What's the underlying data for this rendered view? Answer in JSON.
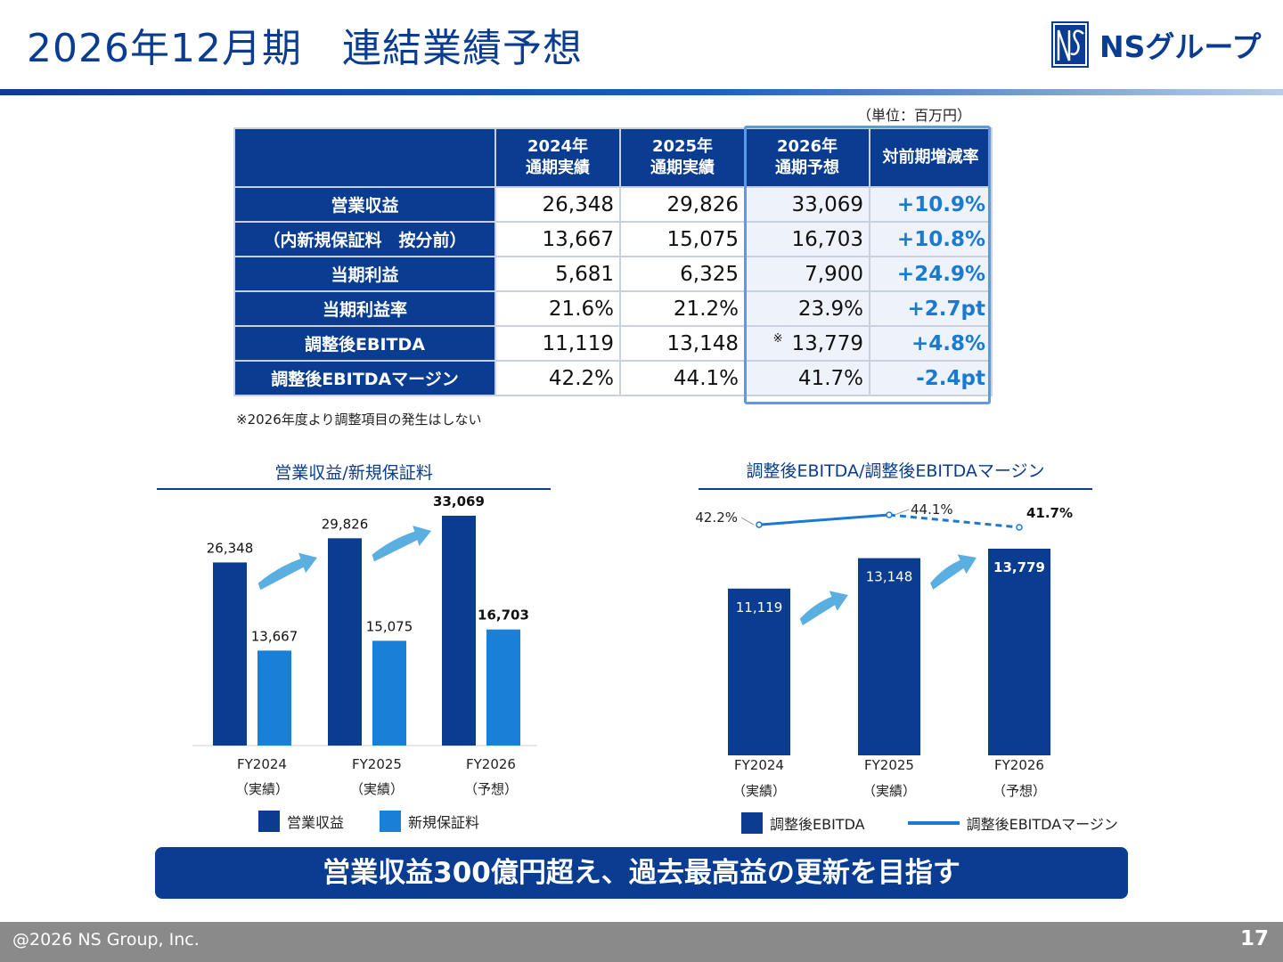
{
  "header": {
    "title": "2026年12月期　連結業績予想",
    "logo_text": "NSグループ",
    "colors": {
      "primary": "#0a3d91",
      "accent": "#1a79d0",
      "light_bar": "#1a7fd6",
      "arrow": "#5aaee0"
    }
  },
  "table": {
    "unit": "（単位：百万円）",
    "columns": [
      {
        "line1": "2024年",
        "line2": "通期実績"
      },
      {
        "line1": "2025年",
        "line2": "通期実績"
      },
      {
        "line1": "2026年",
        "line2": "通期予想"
      },
      {
        "line1": "対前期増減率",
        "line2": ""
      }
    ],
    "rows": [
      {
        "label": "営業収益",
        "v2024": "26,348",
        "v2025": "29,826",
        "v2026": "33,069",
        "change": "+10.9%",
        "mark": ""
      },
      {
        "label": "（内新規保証料　按分前）",
        "v2024": "13,667",
        "v2025": "15,075",
        "v2026": "16,703",
        "change": "+10.8%",
        "mark": ""
      },
      {
        "label": "当期利益",
        "v2024": "5,681",
        "v2025": "6,325",
        "v2026": "7,900",
        "change": "+24.9%",
        "mark": ""
      },
      {
        "label": "当期利益率",
        "v2024": "21.6%",
        "v2025": "21.2%",
        "v2026": "23.9%",
        "change": "+2.7pt",
        "mark": ""
      },
      {
        "label": "調整後EBITDA",
        "v2024": "11,119",
        "v2025": "13,148",
        "v2026": "13,779",
        "change": "+4.8%",
        "mark": "※"
      },
      {
        "label": "調整後EBITDAマージン",
        "v2024": "42.2%",
        "v2025": "44.1%",
        "v2026": "41.7%",
        "change": "-2.4pt",
        "mark": ""
      }
    ],
    "note": "※2026年度より調整項目の発生はしない"
  },
  "chart_data": [
    {
      "type": "bar",
      "title": "営業収益/新規保証料",
      "categories": [
        "FY2024",
        "FY2025",
        "FY2026"
      ],
      "category_sublabels": [
        "（実績）",
        "（実績）",
        "（予想）"
      ],
      "series": [
        {
          "name": "営業収益",
          "values": [
            26348,
            29826,
            33069
          ],
          "labels": [
            "26,348",
            "29,826",
            "33,069"
          ],
          "color": "#0a3d91"
        },
        {
          "name": "新規保証料",
          "values": [
            13667,
            15075,
            16703
          ],
          "labels": [
            "13,667",
            "15,075",
            "16,703"
          ],
          "color": "#1a7fd6"
        }
      ],
      "ylim": [
        0,
        33069
      ],
      "grid": false,
      "legend": "bottom"
    },
    {
      "type": "bar",
      "title": "調整後EBITDA/調整後EBITDAマージン",
      "categories": [
        "FY2024",
        "FY2025",
        "FY2026"
      ],
      "category_sublabels": [
        "（実績）",
        "（実績）",
        "（予想）"
      ],
      "series": [
        {
          "name": "調整後EBITDA",
          "type": "bar",
          "values": [
            11119,
            13148,
            13779
          ],
          "labels": [
            "11,119",
            "13,148",
            "13,779"
          ],
          "color": "#0a3d91"
        },
        {
          "name": "調整後EBITDAマージン",
          "type": "line",
          "values": [
            42.2,
            44.1,
            41.7
          ],
          "labels": [
            "42.2%",
            "44.1%",
            "41.7%"
          ],
          "color": "#1a79d0"
        }
      ],
      "ylim": [
        0,
        13779
      ],
      "grid": false,
      "legend": "bottom"
    }
  ],
  "banner": "営業収益300億円超え、過去最高益の更新を目指す",
  "footer": {
    "copyright": "@2026 NS Group, Inc.",
    "page": "17"
  }
}
